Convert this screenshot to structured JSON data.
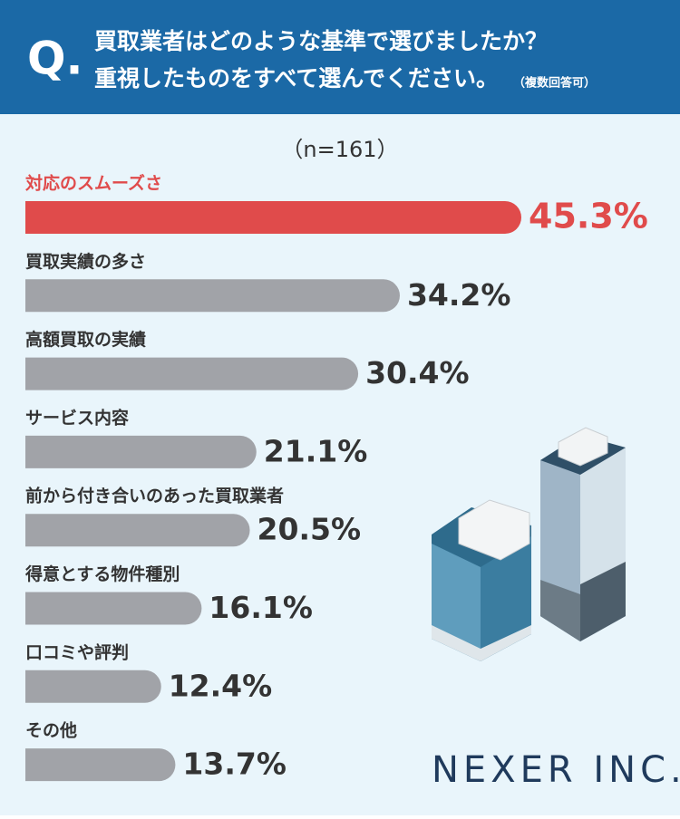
{
  "header": {
    "q": "Q.",
    "line1": "買取業者はどのような基準で選びましたか？",
    "line2": "重視したものをすべて選んでください。",
    "note": "（複数回答可）"
  },
  "chart_data": {
    "type": "bar",
    "orientation": "horizontal",
    "subtitle": "（n=161）",
    "categories": [
      "対応のスムーズさ",
      "買取実績の多さ",
      "高額買取の実績",
      "サービス内容",
      "前から付き合いのあった買取業者",
      "得意とする物件種別",
      "口コミや評判",
      "その他"
    ],
    "values": [
      45.3,
      34.2,
      30.4,
      21.1,
      20.5,
      16.1,
      12.4,
      13.7
    ],
    "value_labels": [
      "45.3%",
      "34.2%",
      "30.4%",
      "21.1%",
      "20.5%",
      "16.1%",
      "12.4%",
      "13.7%"
    ],
    "colors": [
      "#e04b4b",
      "#a1a3a8",
      "#a1a3a8",
      "#a1a3a8",
      "#a1a3a8",
      "#a1a3a8",
      "#a1a3a8",
      "#a1a3a8"
    ]
  },
  "logo": "NEXER INC."
}
